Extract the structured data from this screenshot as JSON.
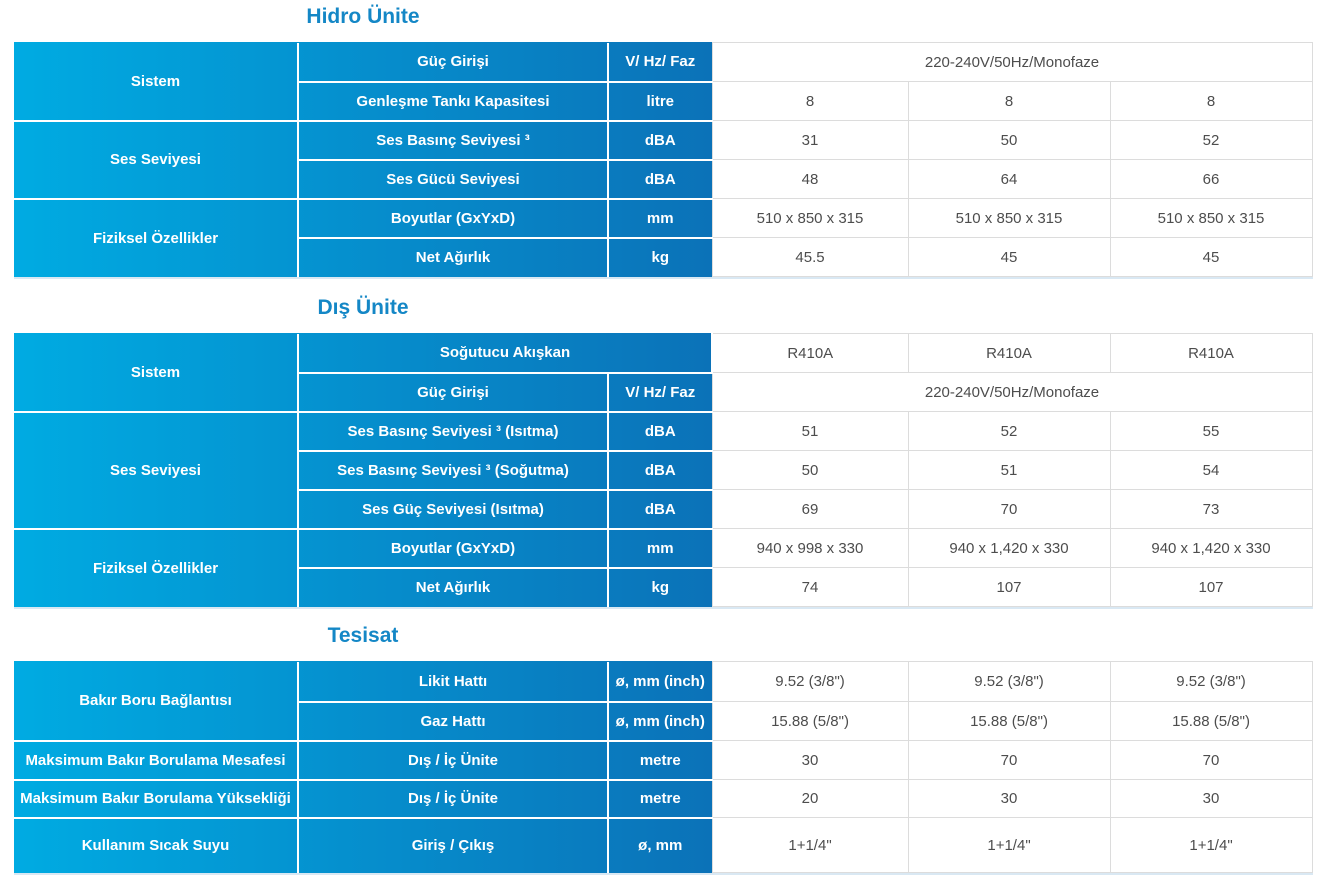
{
  "colors": {
    "title_blue": "#1487c6",
    "gradient_start": "#00abe2",
    "gradient_end": "#0b72b8",
    "header_text": "#ffffff",
    "value_text": "#4d4d4d",
    "grid_line": "#dcdcdc"
  },
  "sections": [
    {
      "title": "Hidro Ünite",
      "rows": [
        {
          "category": "Sistem",
          "param": "Güç Girişi",
          "unit": "V/ Hz/ Faz",
          "value_span": "220-240V/50Hz/Monofaze"
        },
        {
          "param": "Genleşme Tankı Kapasitesi",
          "unit": "litre",
          "values": [
            "8",
            "8",
            "8"
          ]
        },
        {
          "category": "Ses Seviyesi",
          "param": "Ses Basınç Seviyesi ³",
          "unit": "dBA",
          "values": [
            "31",
            "50",
            "52"
          ]
        },
        {
          "param": "Ses Gücü Seviyesi",
          "unit": "dBA",
          "values": [
            "48",
            "64",
            "66"
          ]
        },
        {
          "category": "Fiziksel Özellikler",
          "param": "Boyutlar (GxYxD)",
          "unit": "mm",
          "values": [
            "510 x 850 x 315",
            "510 x 850 x 315",
            "510 x 850 x 315"
          ]
        },
        {
          "param": "Net Ağırlık",
          "unit": "kg",
          "values": [
            "45.5",
            "45",
            "45"
          ]
        }
      ]
    },
    {
      "title": "Dış Ünite",
      "rows": [
        {
          "category": "Sistem",
          "param": "Soğutucu Akışkan",
          "values": [
            "R410A",
            "R410A",
            "R410A"
          ]
        },
        {
          "param": "Güç Girişi",
          "unit": "V/ Hz/ Faz",
          "value_span": "220-240V/50Hz/Monofaze"
        },
        {
          "category": "Ses Seviyesi",
          "param": "Ses Basınç Seviyesi ³ (Isıtma)",
          "unit": "dBA",
          "values": [
            "51",
            "52",
            "55"
          ]
        },
        {
          "param": "Ses Basınç Seviyesi ³ (Soğutma)",
          "unit": "dBA",
          "values": [
            "50",
            "51",
            "54"
          ]
        },
        {
          "param": "Ses Güç Seviyesi (Isıtma)",
          "unit": "dBA",
          "values": [
            "69",
            "70",
            "73"
          ]
        },
        {
          "category": "Fiziksel Özellikler",
          "param": "Boyutlar (GxYxD)",
          "unit": "mm",
          "values": [
            "940 x 998 x 330",
            "940 x 1,420 x 330",
            "940 x 1,420 x 330"
          ]
        },
        {
          "param": "Net Ağırlık",
          "unit": "kg",
          "values": [
            "74",
            "107",
            "107"
          ]
        }
      ]
    },
    {
      "title": "Tesisat",
      "rows": [
        {
          "category": "Bakır Boru Bağlantısı",
          "param": "Likit Hattı",
          "unit": "ø, mm (inch)",
          "values": [
            "9.52 (3/8\")",
            "9.52 (3/8\")",
            "9.52 (3/8\")"
          ]
        },
        {
          "param": "Gaz Hattı",
          "unit": "ø, mm (inch)",
          "values": [
            "15.88 (5/8\")",
            "15.88 (5/8\")",
            "15.88 (5/8\")"
          ]
        },
        {
          "category": "Maksimum Bakır Borulama Mesafesi",
          "param": "Dış / İç Ünite",
          "unit": "metre",
          "values": [
            "30",
            "70",
            "70"
          ]
        },
        {
          "category": "Maksimum Bakır Borulama Yüksekliği",
          "param": "Dış / İç Ünite",
          "unit": "metre",
          "values": [
            "20",
            "30",
            "30"
          ]
        },
        {
          "category": "Kullanım Sıcak Suyu",
          "param": "Giriş / Çıkış",
          "unit": "ø, mm",
          "values": [
            "1+1/4\"",
            "1+1/4\"",
            "1+1/4\""
          ]
        }
      ]
    }
  ]
}
